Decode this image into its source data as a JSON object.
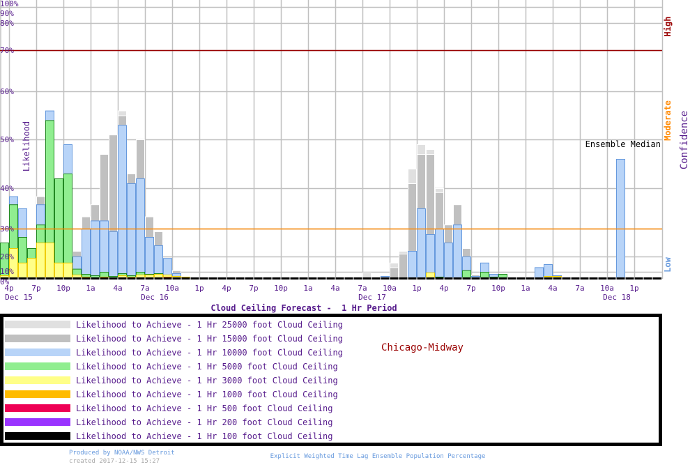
{
  "chart_data": {
    "type": "bar",
    "title": "Cloud Ceiling Forecast -  1 Hr Period",
    "station": "Chicago-Midway",
    "ylabel": "Likelihood",
    "ylim": [
      0,
      100
    ],
    "y_ticks": [
      "0%",
      "10%",
      "20%",
      "30%",
      "40%",
      "50%",
      "60%",
      "70%",
      "80%",
      "90%",
      "100%"
    ],
    "y_tick_values": [
      0,
      10,
      20,
      30,
      40,
      50,
      60,
      70,
      80,
      90,
      100
    ],
    "x_ticks": [
      "4p",
      "7p",
      "10p",
      "1a",
      "4a",
      "7a",
      "10a",
      "1p",
      "4p",
      "7p",
      "10p",
      "1a",
      "4a",
      "7a",
      "10a",
      "1p",
      "4p",
      "7p",
      "10p",
      "1a",
      "4a",
      "7a",
      "10a",
      "1p"
    ],
    "date_labels": [
      {
        "tick": 0,
        "text": "Dec 15"
      },
      {
        "tick": 5,
        "text": "Dec 16"
      },
      {
        "tick": 13,
        "text": "Dec 17"
      },
      {
        "tick": 22,
        "text": "Dec 18"
      }
    ],
    "hour_unit_note": "hour index 0 = 3p-4p Dec 15",
    "thresholds": [
      {
        "value": 70,
        "color": "#990000"
      },
      {
        "value": 30,
        "color": "#ff8800"
      }
    ],
    "confidence_label": "Confidence",
    "confidence_levels": [
      {
        "text": "High",
        "color": "#990000"
      },
      {
        "text": "Moderate",
        "color": "#ff8800"
      },
      {
        "text": "Low",
        "color": "#6699dd"
      }
    ],
    "annotation": "Ensemble Median",
    "series": [
      {
        "name": "Likelihood to Achieve -  1 Hr 25000 foot Cloud Ceiling",
        "color": "#e0e0e0",
        "stroke": "#ffffff"
      },
      {
        "name": "Likelihood to Achieve -  1 Hr 15000 foot Cloud Ceiling",
        "color": "#c0c0c0",
        "stroke": "#ffffff"
      },
      {
        "name": "Likelihood to Achieve -  1 Hr 10000 foot Cloud Ceiling",
        "color": "#b8d4f8",
        "stroke": "#6699dd"
      },
      {
        "name": "Likelihood to Achieve -  1 Hr 5000 foot Cloud Ceiling",
        "color": "#90ee90",
        "stroke": "#228822"
      },
      {
        "name": "Likelihood to Achieve -  1 Hr 3000 foot Cloud Ceiling",
        "color": "#ffff88",
        "stroke": "#eecc00"
      },
      {
        "name": "Likelihood to Achieve -  1 Hr 1000 foot Cloud Ceiling",
        "color": "#ffbb00",
        "stroke": "#ee7700"
      },
      {
        "name": "Likelihood to Achieve -  1 Hr 500 foot Cloud Ceiling",
        "color": "#ee0055",
        "stroke": "#ee0055"
      },
      {
        "name": "Likelihood to Achieve -  1 Hr 200 foot Cloud Ceiling",
        "color": "#9933ff",
        "stroke": "#9933ff"
      },
      {
        "name": "Likelihood to Achieve -  1 Hr 100 foot Cloud Ceiling",
        "color": "#000000",
        "stroke": "#000000"
      }
    ],
    "bars": [
      {
        "hour": 0,
        "v": [
          0,
          0,
          0,
          25,
          5,
          0
        ]
      },
      {
        "hour": 1,
        "v": [
          0,
          0,
          38,
          36,
          23,
          0
        ]
      },
      {
        "hour": 2,
        "v": [
          0,
          0,
          35,
          27,
          16,
          0
        ]
      },
      {
        "hour": 3,
        "v": [
          0,
          0,
          0,
          23,
          19,
          0
        ]
      },
      {
        "hour": 4,
        "v": [
          0,
          38,
          36,
          31,
          25,
          0
        ]
      },
      {
        "hour": 5,
        "v": [
          0,
          0,
          56,
          54,
          25,
          0
        ]
      },
      {
        "hour": 6,
        "v": [
          0,
          0,
          0,
          42,
          16,
          0
        ]
      },
      {
        "hour": 7,
        "v": [
          0,
          0,
          49,
          43,
          16,
          0
        ]
      },
      {
        "hour": 8,
        "v": [
          0,
          22,
          20,
          12,
          6,
          0
        ]
      },
      {
        "hour": 9,
        "v": [
          0,
          33,
          30,
          7,
          3,
          0
        ]
      },
      {
        "hour": 10,
        "v": [
          0,
          36,
          32,
          5,
          2,
          0
        ]
      },
      {
        "hour": 11,
        "v": [
          0,
          47,
          32,
          10,
          3,
          0
        ]
      },
      {
        "hour": 12,
        "v": [
          0,
          51,
          29,
          4,
          2,
          0
        ]
      },
      {
        "hour": 13,
        "v": [
          56,
          55,
          53,
          8,
          5,
          0
        ]
      },
      {
        "hour": 14,
        "v": [
          0,
          43,
          41,
          5,
          3,
          0
        ]
      },
      {
        "hour": 15,
        "v": [
          0,
          50,
          42,
          10,
          6,
          1
        ]
      },
      {
        "hour": 16,
        "v": [
          0,
          33,
          27,
          7,
          6,
          0
        ]
      },
      {
        "hour": 17,
        "v": [
          0,
          29,
          24,
          8,
          7,
          0
        ]
      },
      {
        "hour": 18,
        "v": [
          0,
          0,
          19,
          0,
          6,
          3
        ]
      },
      {
        "hour": 19,
        "v": [
          0,
          11,
          8,
          0,
          4,
          0
        ]
      },
      {
        "hour": 20,
        "v": [
          0,
          0,
          0,
          0,
          3,
          0
        ]
      },
      {
        "hour": 23,
        "v": [
          0,
          0,
          0,
          2,
          0,
          0
        ]
      },
      {
        "hour": 32,
        "v": [
          0,
          0,
          0,
          2,
          0,
          0
        ]
      },
      {
        "hour": 40,
        "v": [
          9,
          0,
          0,
          0,
          0,
          0
        ]
      },
      {
        "hour": 42,
        "v": [
          0,
          0,
          4,
          0,
          0,
          0
        ]
      },
      {
        "hour": 43,
        "v": [
          16,
          13,
          0,
          0,
          0,
          0
        ]
      },
      {
        "hour": 44,
        "v": [
          22,
          21,
          0,
          0,
          0,
          0
        ]
      },
      {
        "hour": 45,
        "v": [
          44,
          41,
          22,
          0,
          0,
          0
        ]
      },
      {
        "hour": 46,
        "v": [
          49,
          47,
          35,
          0,
          0,
          0
        ]
      },
      {
        "hour": 47,
        "v": [
          48,
          47,
          28,
          0,
          9,
          0
        ]
      },
      {
        "hour": 48,
        "v": [
          40,
          39,
          30,
          3,
          0,
          0
        ]
      },
      {
        "hour": 49,
        "v": [
          0,
          31,
          25,
          0,
          0,
          0
        ]
      },
      {
        "hour": 50,
        "v": [
          0,
          36,
          31,
          0,
          0,
          0
        ]
      },
      {
        "hour": 51,
        "v": [
          0,
          23,
          20,
          11,
          0,
          0
        ]
      },
      {
        "hour": 52,
        "v": [
          0,
          6,
          4,
          0,
          0,
          0
        ]
      },
      {
        "hour": 53,
        "v": [
          0,
          0,
          16,
          10,
          0,
          0
        ]
      },
      {
        "hour": 54,
        "v": [
          0,
          0,
          7,
          3,
          0,
          0
        ]
      },
      {
        "hour": 55,
        "v": [
          0,
          0,
          0,
          7,
          0,
          0
        ]
      },
      {
        "hour": 59,
        "v": [
          0,
          0,
          13,
          0,
          0,
          0
        ]
      },
      {
        "hour": 60,
        "v": [
          0,
          0,
          15,
          0,
          4,
          0
        ]
      },
      {
        "hour": 61,
        "v": [
          0,
          0,
          5,
          0,
          4,
          0
        ]
      },
      {
        "hour": 64,
        "v": [
          0,
          0,
          2,
          0,
          0,
          0
        ]
      },
      {
        "hour": 65,
        "v": [
          0,
          0,
          2,
          0,
          2,
          0
        ]
      },
      {
        "hour": 66,
        "v": [
          0,
          0,
          0,
          0,
          2,
          0
        ]
      },
      {
        "hour": 68,
        "v": [
          0,
          0,
          46,
          0,
          0,
          0
        ]
      }
    ]
  },
  "footer": {
    "produced_by": "Produced by NOAA/NWS Detroit",
    "created": "created 2017-12-15 15:27",
    "method": "Explicit Weighted Time Lag Ensemble Population Percentage"
  }
}
